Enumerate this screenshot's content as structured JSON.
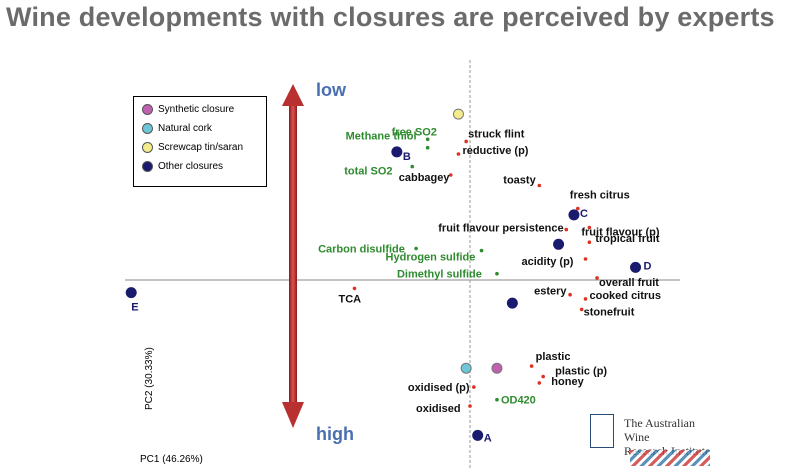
{
  "title": "Wine developments with closures are perceived by experts",
  "logo": {
    "line1": "The Australian Wine",
    "line2": "Research Institute"
  },
  "colors": {
    "red_arrow": "#cc3333",
    "green_label": "#2e8b2e",
    "blue_label": "#4a6fb0",
    "closure_marker": "#1a1a6e",
    "attr_dot": "#e03020"
  },
  "chart_data": {
    "type": "scatter",
    "title": "Wine developments with closures are perceived by experts",
    "xlabel": "PC1 (46.26%)",
    "ylabel": "PC2 (30.33%)",
    "arrow_labels": {
      "top": "low",
      "bottom": "high"
    },
    "legend": {
      "placement": "top-left",
      "entries": [
        {
          "name": "Synthetic closure",
          "color": "#c060b0"
        },
        {
          "name": "Natural cork",
          "color": "#6cc6d8"
        },
        {
          "name": "Screwcap tin/saran",
          "color": "#f4ec8c"
        },
        {
          "name": "Other closures",
          "color": "#1a1a6e"
        }
      ]
    },
    "closures": [
      {
        "label": "",
        "kind": "Screwcap tin/saran",
        "x": -0.03,
        "y": 0.79
      },
      {
        "label": "B",
        "kind": "Other closures",
        "x": -0.19,
        "y": 0.61
      },
      {
        "label": "C",
        "kind": "Other closures",
        "x": 0.27,
        "y": 0.31
      },
      {
        "label": "",
        "kind": "Other closures",
        "x": 0.23,
        "y": 0.17
      },
      {
        "label": "D",
        "kind": "Other closures",
        "x": 0.43,
        "y": 0.06
      },
      {
        "label": "E",
        "kind": "Other closures",
        "x": -0.88,
        "y": -0.06
      },
      {
        "label": "",
        "kind": "Other closures",
        "x": 0.11,
        "y": -0.11
      },
      {
        "label": "",
        "kind": "Synthetic closure",
        "x": 0.07,
        "y": -0.42
      },
      {
        "label": "",
        "kind": "Natural cork",
        "x": -0.01,
        "y": -0.42
      },
      {
        "label": "A",
        "kind": "Other closures",
        "x": 0.02,
        "y": -0.74
      }
    ],
    "attributes": [
      {
        "label": "free SO2",
        "group": "chemical",
        "x": -0.11,
        "y": 0.67
      },
      {
        "label": "Methane thiol",
        "group": "chemical",
        "x": -0.11,
        "y": 0.63
      },
      {
        "label": "total SO2",
        "group": "chemical",
        "x": -0.15,
        "y": 0.54
      },
      {
        "label": "Carbon disulfide",
        "group": "chemical",
        "x": -0.14,
        "y": 0.15
      },
      {
        "label": "Hydrogen sulfide",
        "group": "chemical",
        "x": 0.03,
        "y": 0.14
      },
      {
        "label": "Dimethyl sulfide",
        "group": "chemical",
        "x": 0.07,
        "y": 0.03
      },
      {
        "label": "OD420",
        "group": "chemical",
        "x": 0.07,
        "y": -0.57
      },
      {
        "label": "struck flint",
        "group": "sensory",
        "x": -0.01,
        "y": 0.66
      },
      {
        "label": "reductive (p)",
        "group": "sensory",
        "x": -0.03,
        "y": 0.6
      },
      {
        "label": "cabbagey",
        "group": "sensory",
        "x": -0.05,
        "y": 0.5
      },
      {
        "label": "toasty",
        "group": "sensory",
        "x": 0.18,
        "y": 0.45
      },
      {
        "label": "fresh citrus",
        "group": "sensory",
        "x": 0.28,
        "y": 0.34
      },
      {
        "label": "fruit flavour persistence",
        "group": "sensory",
        "x": 0.25,
        "y": 0.24
      },
      {
        "label": "fruit flavour (p)",
        "group": "sensory",
        "x": 0.31,
        "y": 0.25
      },
      {
        "label": "tropical fruit",
        "group": "sensory",
        "x": 0.31,
        "y": 0.18
      },
      {
        "label": "acidity (p)",
        "group": "sensory",
        "x": 0.3,
        "y": 0.1
      },
      {
        "label": "overall fruit",
        "group": "sensory",
        "x": 0.33,
        "y": 0.01
      },
      {
        "label": "estery",
        "group": "sensory",
        "x": 0.26,
        "y": -0.07
      },
      {
        "label": "cooked citrus",
        "group": "sensory",
        "x": 0.3,
        "y": -0.09
      },
      {
        "label": "stonefruit",
        "group": "sensory",
        "x": 0.29,
        "y": -0.14
      },
      {
        "label": "TCA",
        "group": "sensory",
        "x": -0.3,
        "y": -0.04
      },
      {
        "label": "plastic",
        "group": "sensory",
        "x": 0.16,
        "y": -0.41
      },
      {
        "label": "plastic (p)",
        "group": "sensory",
        "x": 0.19,
        "y": -0.46
      },
      {
        "label": "honey",
        "group": "sensory",
        "x": 0.18,
        "y": -0.49
      },
      {
        "label": "oxidised (p)",
        "group": "sensory",
        "x": 0.01,
        "y": -0.51
      },
      {
        "label": "oxidised",
        "group": "sensory",
        "x": 0.0,
        "y": -0.6
      }
    ]
  }
}
